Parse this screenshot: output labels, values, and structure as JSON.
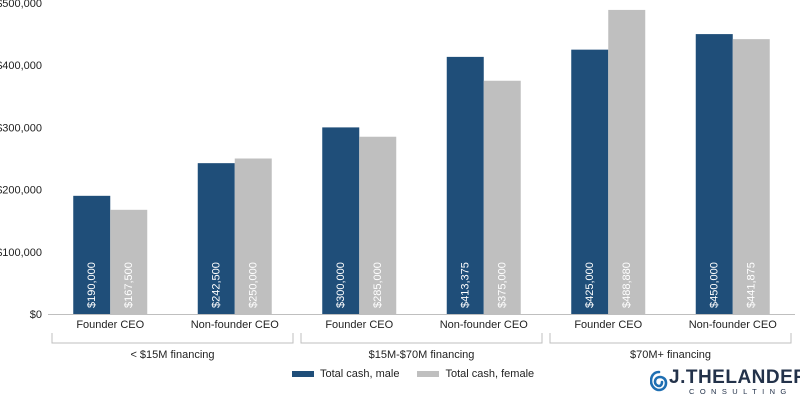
{
  "chart_data": {
    "type": "bar",
    "title": "",
    "xlabel": "",
    "ylabel": "",
    "ylim": [
      0,
      500000
    ],
    "yticks": [
      "$0",
      "$100,000",
      "$200,000",
      "$300,000",
      "$400,000",
      "$500,000"
    ],
    "grid": false,
    "legend_position": "bottom",
    "categories": [
      "Founder CEO",
      "Non-founder CEO",
      "Founder CEO",
      "Non-founder CEO",
      "Founder CEO",
      "Non-founder CEO"
    ],
    "groups": [
      {
        "label": "< $15M financing",
        "span": [
          0,
          1
        ]
      },
      {
        "label": "$15M-$70M financing",
        "span": [
          2,
          3
        ]
      },
      {
        "label": "$70M+ financing",
        "span": [
          4,
          5
        ]
      }
    ],
    "series": [
      {
        "name": "Total cash, male",
        "color": "#1f4e79",
        "values": [
          190000,
          242500,
          300000,
          413375,
          425000,
          450000
        ],
        "labels": [
          "$190,000",
          "$242,500",
          "$300,000",
          "$413,375",
          "$425,000",
          "$450,000"
        ]
      },
      {
        "name": "Total cash, female",
        "color": "#bfbfbf",
        "values": [
          167500,
          250000,
          285000,
          375000,
          488880,
          441875
        ],
        "labels": [
          "$167,500",
          "$250,000",
          "$285,000",
          "$375,000",
          "$488,880",
          "$441,875"
        ]
      }
    ]
  },
  "logo": {
    "name": "J.THELANDER",
    "sub": "CONSULTING",
    "icon": "swirl-logo-icon"
  }
}
